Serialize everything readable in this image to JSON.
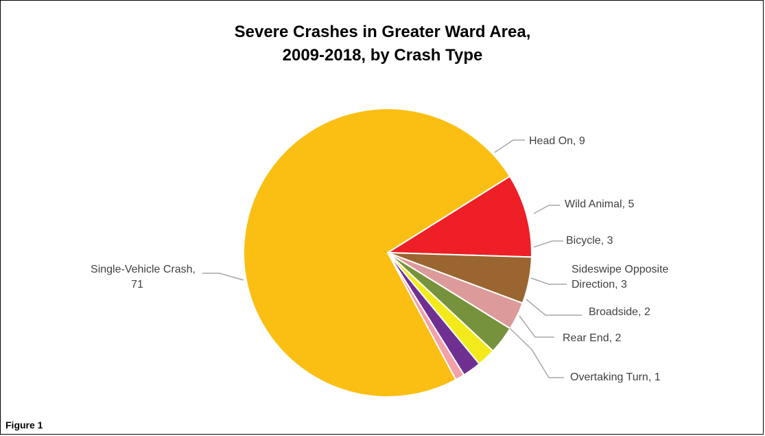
{
  "figure_label": "Figure 1",
  "chart_data": {
    "type": "pie",
    "title_lines": [
      "Severe Crashes in Greater Ward Area,",
      "2009-2018, by Crash Type"
    ],
    "slices": [
      {
        "label": "Head On",
        "label_lines": [
          "Head On, 9"
        ],
        "value": 9,
        "color": "#ee1f26"
      },
      {
        "label": "Wild Animal",
        "label_lines": [
          "Wild Animal, 5"
        ],
        "value": 5,
        "color": "#9a6530"
      },
      {
        "label": "Bicycle",
        "label_lines": [
          "Bicycle, 3"
        ],
        "value": 3,
        "color": "#dc9a9a"
      },
      {
        "label": "Sideswipe Opposite Direction",
        "label_lines": [
          "Sideswipe Opposite",
          "Direction, 3"
        ],
        "value": 3,
        "color": "#77923c"
      },
      {
        "label": "Broadside",
        "label_lines": [
          "Broadside, 2"
        ],
        "value": 2,
        "color": "#f2ea1b"
      },
      {
        "label": "Rear End",
        "label_lines": [
          "Rear End, 2"
        ],
        "value": 2,
        "color": "#6f3091"
      },
      {
        "label": "Overtaking Turn",
        "label_lines": [
          "Overtaking Turn, 1"
        ],
        "value": 1,
        "color": "#f4a0a8"
      },
      {
        "label": "Single-Vehicle Crash",
        "label_lines": [
          "Single-Vehicle Crash,",
          "71"
        ],
        "value": 71,
        "color": "#fbbe12"
      }
    ],
    "legend": "none"
  }
}
